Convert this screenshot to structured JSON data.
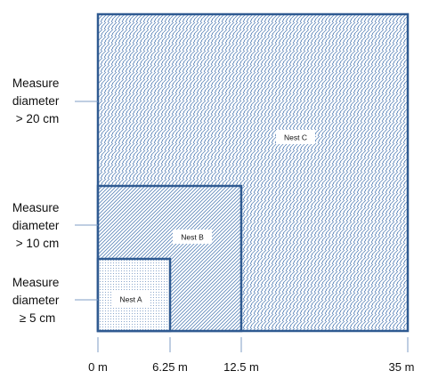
{
  "colors": {
    "outline": "#2f5a91",
    "pattern": "#5b85b9",
    "connector": "#7f9ec6"
  },
  "nests": [
    {
      "id": "nest-c",
      "label": "Nest C",
      "pattern": "brick-weave",
      "max_extent_m": 35,
      "measure": [
        "Measure",
        "diameter",
        "> 20 cm"
      ]
    },
    {
      "id": "nest-b",
      "label": "Nest B",
      "pattern": "diagonal-hatch",
      "max_extent_m": 12.5,
      "measure": [
        "Measure",
        "diameter",
        "> 10 cm"
      ]
    },
    {
      "id": "nest-a",
      "label": "Nest A",
      "pattern": "dots",
      "max_extent_m": 6.25,
      "measure": [
        "Measure",
        "diameter",
        "≥ 5 cm"
      ]
    }
  ],
  "axis": {
    "ticks": [
      {
        "value_m": 0,
        "label": "0 m"
      },
      {
        "value_m": 6.25,
        "label": "6.25 m"
      },
      {
        "value_m": 12.5,
        "label": "12.5 m"
      },
      {
        "value_m": 35,
        "label": "35 m"
      }
    ]
  }
}
